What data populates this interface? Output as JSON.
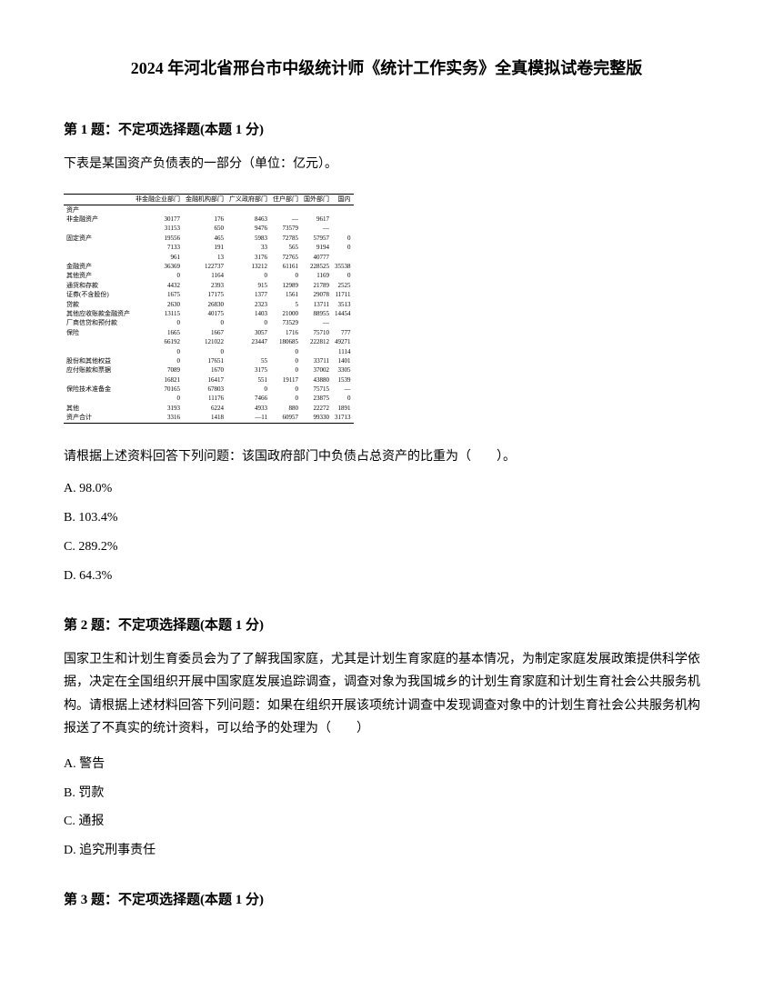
{
  "title": "2024 年河北省邢台市中级统计师《统计工作实务》全真模拟试卷完整版",
  "q1": {
    "header": "第 1 题：不定项选择题(本题 1 分)",
    "intro": "下表是某国资产负债表的一部分（单位：亿元）。",
    "table": {
      "headers": [
        "",
        "非金融企业部门",
        "金融机构部门",
        "广义政府部门",
        "住户部门",
        "国外部门",
        "国内"
      ],
      "rows": [
        [
          "资产",
          "",
          "",
          "",
          "",
          "",
          ""
        ],
        [
          "非金融资产",
          "30177",
          "176",
          "8463",
          "—",
          "9617",
          ""
        ],
        [
          "",
          "31153",
          "650",
          "9476",
          "73579",
          "—",
          ""
        ],
        [
          "固定资产",
          "19556",
          "465",
          "5983",
          "72785",
          "57957",
          "0"
        ],
        [
          "",
          "7133",
          "191",
          "33",
          "565",
          "9194",
          "0"
        ],
        [
          "",
          "961",
          "13",
          "3176",
          "72765",
          "40777",
          ""
        ],
        [
          "金融资产",
          "36369",
          "122737",
          "13212",
          "61161",
          "228525",
          "35538"
        ],
        [
          "其他资产",
          "0",
          "1164",
          "0",
          "0",
          "1169",
          "0"
        ],
        [
          "通货和存款",
          "4432",
          "2393",
          "915",
          "12989",
          "21789",
          "2525"
        ],
        [
          "证券(不含股份)",
          "1675",
          "17175",
          "1377",
          "1561",
          "29078",
          "11711"
        ],
        [
          "贷款",
          "2630",
          "26830",
          "2323",
          "5",
          "13711",
          "3513"
        ],
        [
          "其他应收账款金融资产",
          "13115",
          "40175",
          "1403",
          "21000",
          "88955",
          "14454"
        ],
        [
          "厂商信贷和预付款",
          "0",
          "0",
          "0",
          "73529",
          "—",
          ""
        ],
        [
          "保险",
          "1665",
          "1667",
          "3057",
          "1716",
          "75710",
          "777"
        ],
        [
          "",
          "66192",
          "121022",
          "23447",
          "180685",
          "222812",
          "49271"
        ],
        [
          "",
          "0",
          "0",
          "",
          "0",
          "",
          "1114"
        ],
        [
          "股份和其他权益",
          "0",
          "17651",
          "55",
          "0",
          "33711",
          "1401"
        ],
        [
          "应付账款和票据",
          "7089",
          "1670",
          "3175",
          "0",
          "37002",
          "3305"
        ],
        [
          "",
          "16821",
          "16417",
          "551",
          "19117",
          "43880",
          "1539"
        ],
        [
          "保险技术准备金",
          "70165",
          "67803",
          "0",
          "0",
          "75715",
          "—"
        ],
        [
          "",
          "0",
          "11176",
          "7466",
          "0",
          "23875",
          "0"
        ],
        [
          "其他",
          "3193",
          "6224",
          "4933",
          "880",
          "22272",
          "1891"
        ],
        [
          "资产合计",
          "3316",
          "1418",
          "—11",
          "60957",
          "99330",
          "31713"
        ]
      ]
    },
    "subquestion": "请根据上述资料回答下列问题：该国政府部门中负债占总资产的比重为（　　）。",
    "options": {
      "a": "A. 98.0%",
      "b": "B. 103.4%",
      "c": "C. 289.2%",
      "d": "D. 64.3%"
    }
  },
  "q2": {
    "header": "第 2 题：不定项选择题(本题 1 分)",
    "text": "国家卫生和计划生育委员会为了了解我国家庭，尤其是计划生育家庭的基本情况，为制定家庭发展政策提供科学依据，决定在全国组织开展中国家庭发展追踪调查，调查对象为我国城乡的计划生育家庭和计划生育社会公共服务机构。请根据上述材料回答下列问题：如果在组织开展该项统计调查中发现调查对象中的计划生育社会公共服务机构报送了不真实的统计资料，可以给予的处理为（　　）",
    "options": {
      "a": "A. 警告",
      "b": "B. 罚款",
      "c": "C. 通报",
      "d": "D. 追究刑事责任"
    }
  },
  "q3": {
    "header": "第 3 题：不定项选择题(本题 1 分)"
  }
}
